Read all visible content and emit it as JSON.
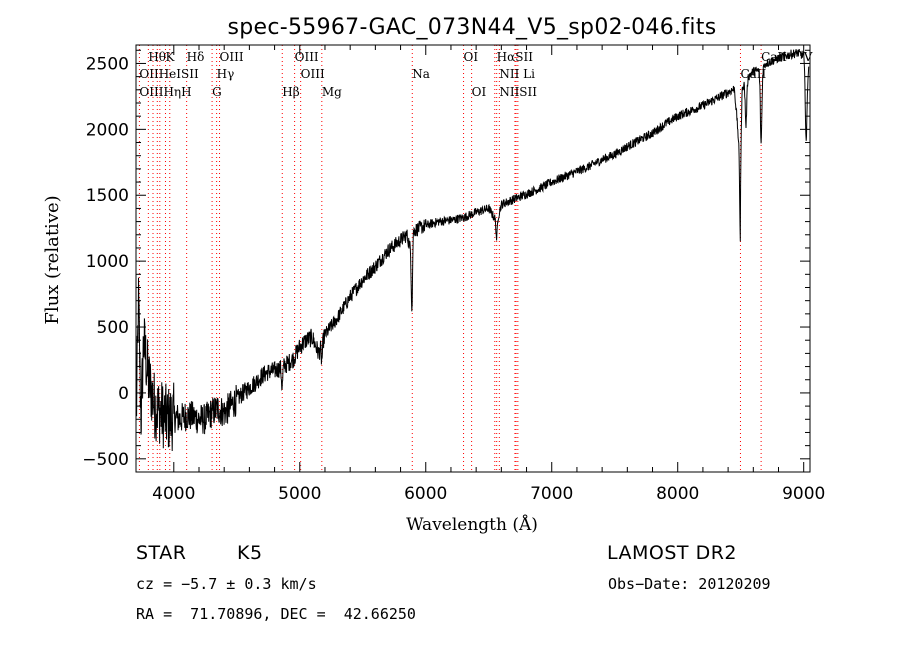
{
  "chart_data": {
    "type": "line",
    "title": "spec-55967-GAC_073N44_V5_sp02-046.fits",
    "xlabel": "Wavelength (Å)",
    "ylabel": "Flux (relative)",
    "xlim": [
      3700,
      9050
    ],
    "ylim": [
      -600,
      2640
    ],
    "x_ticks": [
      4000,
      5000,
      6000,
      7000,
      8000,
      9000
    ],
    "y_ticks": [
      -500,
      0,
      500,
      1000,
      1500,
      2000,
      2500
    ],
    "x_tick_labels": [
      "4000",
      "5000",
      "6000",
      "7000",
      "8000",
      "9000"
    ],
    "y_tick_labels": [
      "−500",
      "0",
      "500",
      "1000",
      "1500",
      "2000",
      "2500"
    ],
    "grid": false,
    "line_color": "#000000",
    "marker_color": "#ff0000",
    "spectrum_anchors": [
      [
        3700,
        -300
      ],
      [
        3720,
        700
      ],
      [
        3740,
        -200
      ],
      [
        3760,
        400
      ],
      [
        3800,
        100
      ],
      [
        3850,
        -100
      ],
      [
        3900,
        -150
      ],
      [
        3950,
        -200
      ],
      [
        4000,
        -180
      ],
      [
        4050,
        -200
      ],
      [
        4100,
        -170
      ],
      [
        4150,
        -180
      ],
      [
        4200,
        -200
      ],
      [
        4250,
        -200
      ],
      [
        4300,
        -150
      ],
      [
        4350,
        -120
      ],
      [
        4400,
        -150
      ],
      [
        4450,
        -100
      ],
      [
        4500,
        -50
      ],
      [
        4550,
        0
      ],
      [
        4600,
        40
      ],
      [
        4650,
        80
      ],
      [
        4700,
        130
      ],
      [
        4750,
        160
      ],
      [
        4800,
        170
      ],
      [
        4850,
        190
      ],
      [
        4900,
        220
      ],
      [
        4950,
        260
      ],
      [
        5000,
        350
      ],
      [
        5050,
        400
      ],
      [
        5100,
        420
      ],
      [
        5150,
        300
      ],
      [
        5200,
        440
      ],
      [
        5300,
        570
      ],
      [
        5400,
        730
      ],
      [
        5500,
        860
      ],
      [
        5600,
        960
      ],
      [
        5700,
        1080
      ],
      [
        5800,
        1160
      ],
      [
        5850,
        1200
      ],
      [
        5890,
        1050
      ],
      [
        5900,
        1230
      ],
      [
        6000,
        1270
      ],
      [
        6100,
        1300
      ],
      [
        6200,
        1310
      ],
      [
        6300,
        1330
      ],
      [
        6400,
        1370
      ],
      [
        6500,
        1400
      ],
      [
        6550,
        1320
      ],
      [
        6563,
        1300
      ],
      [
        6600,
        1430
      ],
      [
        6700,
        1470
      ],
      [
        6800,
        1510
      ],
      [
        6900,
        1550
      ],
      [
        7000,
        1600
      ],
      [
        7100,
        1640
      ],
      [
        7200,
        1680
      ],
      [
        7300,
        1720
      ],
      [
        7400,
        1770
      ],
      [
        7500,
        1810
      ],
      [
        7600,
        1870
      ],
      [
        7700,
        1920
      ],
      [
        7800,
        1970
      ],
      [
        7900,
        2040
      ],
      [
        8000,
        2100
      ],
      [
        8100,
        2140
      ],
      [
        8200,
        2180
      ],
      [
        8300,
        2230
      ],
      [
        8400,
        2280
      ],
      [
        8450,
        2310
      ],
      [
        8498,
        1750
      ],
      [
        8500,
        2300
      ],
      [
        8542,
        2380
      ],
      [
        8600,
        2440
      ],
      [
        8662,
        2450
      ],
      [
        8700,
        2500
      ],
      [
        8800,
        2540
      ],
      [
        8900,
        2570
      ],
      [
        8950,
        2580
      ],
      [
        9000,
        2560
      ],
      [
        9020,
        2200
      ],
      [
        9040,
        2500
      ]
    ],
    "absorption_dips": [
      [
        4860,
        150
      ],
      [
        5175,
        120
      ],
      [
        5890,
        400
      ],
      [
        6563,
        130
      ],
      [
        8498,
        600
      ],
      [
        8542,
        350
      ],
      [
        8662,
        560
      ],
      [
        9020,
        300
      ]
    ],
    "line_markers": [
      {
        "label": "Hθ",
        "x": 3798,
        "row": 1
      },
      {
        "label": "K",
        "x": 3934,
        "row": 1
      },
      {
        "label": "Hδ",
        "x": 4102,
        "row": 1
      },
      {
        "label": "OIII",
        "x": 4363,
        "row": 1
      },
      {
        "label": "OIII",
        "x": 4959,
        "row": 1
      },
      {
        "label": "OI",
        "x": 6300,
        "row": 1
      },
      {
        "label": "HαSII",
        "x": 6563,
        "row": 1
      },
      {
        "label": "CaII",
        "x": 8662,
        "row": 1
      },
      {
        "label": "OIIHeISII",
        "x": 3727,
        "row": 2
      },
      {
        "label": "Hγ",
        "x": 4340,
        "row": 2
      },
      {
        "label": "OIII",
        "x": 5007,
        "row": 2
      },
      {
        "label": "Na",
        "x": 5893,
        "row": 2
      },
      {
        "label": "NII Li",
        "x": 6584,
        "row": 2
      },
      {
        "label": "CaII",
        "x": 8498,
        "row": 2
      },
      {
        "label": "OIIIHηH",
        "x": 3727,
        "row": 3
      },
      {
        "label": "G",
        "x": 4304,
        "row": 3
      },
      {
        "label": "Hβ",
        "x": 4861,
        "row": 3
      },
      {
        "label": "Mg",
        "x": 5175,
        "row": 3
      },
      {
        "label": "OI",
        "x": 6364,
        "row": 3
      },
      {
        "label": "NIISII",
        "x": 6584,
        "row": 3
      },
      {
        "label": "V",
        "x": 9000,
        "row": 1
      }
    ],
    "marker_lines_x": [
      3727,
      3798,
      3835,
      3869,
      3889,
      3934,
      3968,
      4102,
      4304,
      4340,
      4363,
      4861,
      4959,
      5007,
      5175,
      5893,
      6300,
      6364,
      6548,
      6563,
      6584,
      6708,
      6717,
      6731,
      8498,
      8662
    ]
  },
  "info": {
    "object_type": "STAR",
    "subclass": "K5",
    "redshift": "cz = −5.7 ± 0.3 km/s",
    "coords": "RA =  71.70896, DEC =  42.66250",
    "survey": "LAMOST DR2",
    "obs_date": "Obs−Date: 20120209"
  }
}
